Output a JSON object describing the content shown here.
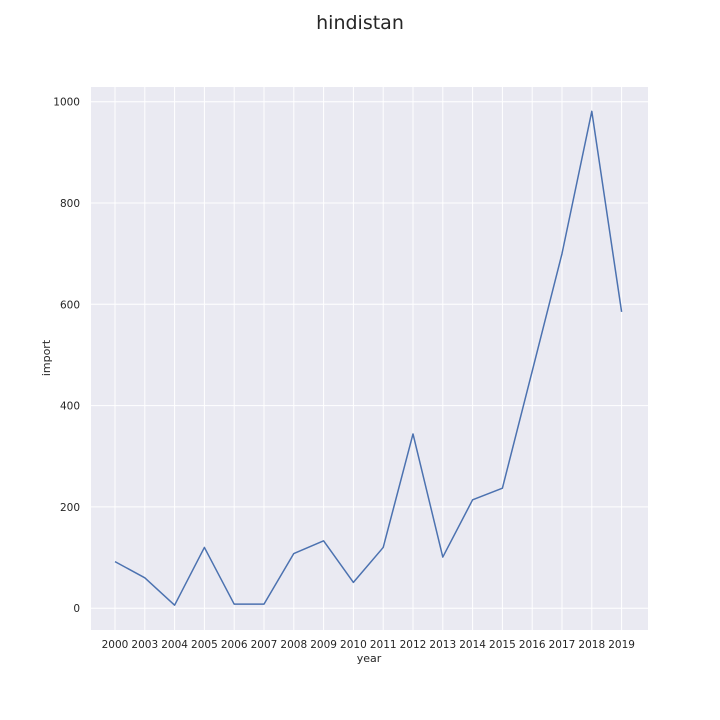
{
  "chart_data": {
    "type": "line",
    "title": "hindistan",
    "xlabel": "year",
    "ylabel": "import",
    "categories": [
      "2000",
      "2003",
      "2004",
      "2005",
      "2006",
      "2007",
      "2008",
      "2009",
      "2010",
      "2011",
      "2012",
      "2013",
      "2014",
      "2015",
      "2016",
      "2017",
      "2018",
      "2019"
    ],
    "series": [
      {
        "values": [
          92,
          60,
          6,
          120,
          8,
          8,
          108,
          133,
          51,
          120,
          344,
          101,
          214,
          237,
          468,
          700,
          981,
          585
        ]
      }
    ],
    "yticks": [
      0,
      200,
      400,
      600,
      800,
      1000
    ],
    "ylim": [
      -43,
      1029
    ],
    "grid": true,
    "legend": "none",
    "colors": {
      "background": "#eaeaf2",
      "grid": "#ffffff",
      "line": "#4c72b0"
    }
  }
}
